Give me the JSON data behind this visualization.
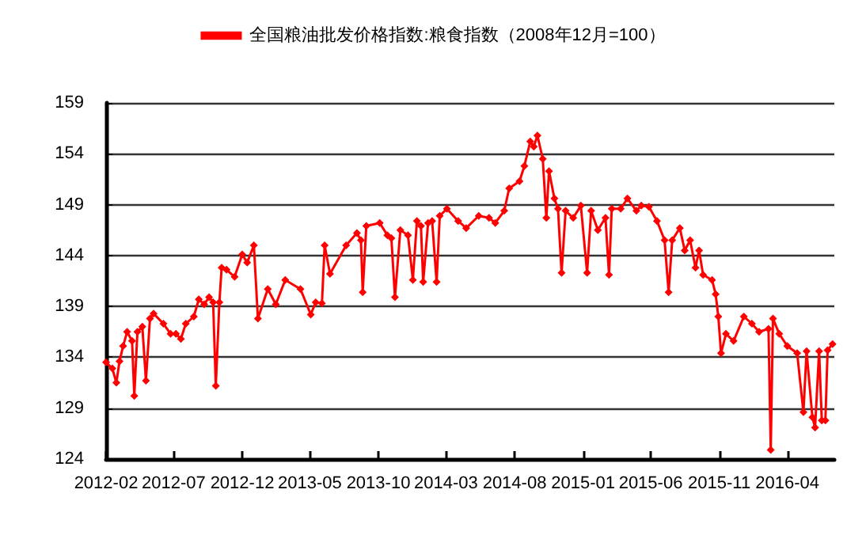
{
  "chart_data": {
    "type": "line",
    "legend": "top",
    "marker": "diamond",
    "line_style": "solid",
    "grid": "y",
    "xlim": [
      "2012-02-01",
      "2016-07-15"
    ],
    "xticks": [
      "2012-02",
      "2012-07",
      "2012-12",
      "2013-05",
      "2013-10",
      "2014-03",
      "2014-08",
      "2015-01",
      "2015-06",
      "2015-11",
      "2016-04"
    ],
    "ylim": [
      124,
      159
    ],
    "yticks": [
      124,
      129,
      134,
      139,
      144,
      149,
      154,
      159
    ],
    "series": [
      {
        "name": "全国粮油批发价格指数:粮食指数（2008年12月=100）",
        "color": "#ff0000",
        "x": [
          "2012-02-01",
          "2012-02-15",
          "2012-02-24",
          "2012-03-02",
          "2012-03-10",
          "2012-03-19",
          "2012-03-30",
          "2012-04-04",
          "2012-04-11",
          "2012-04-22",
          "2012-04-30",
          "2012-05-09",
          "2012-05-17",
          "2012-06-08",
          "2012-06-24",
          "2012-07-06",
          "2012-07-17",
          "2012-07-28",
          "2012-08-15",
          "2012-08-26",
          "2012-09-07",
          "2012-09-18",
          "2012-09-27",
          "2012-10-03",
          "2012-10-11",
          "2012-10-16",
          "2012-10-27",
          "2012-11-14",
          "2012-12-01",
          "2012-12-12",
          "2012-12-27",
          "2013-01-05",
          "2013-01-27",
          "2013-02-14",
          "2013-03-07",
          "2013-04-10",
          "2013-05-03",
          "2013-05-14",
          "2013-05-28",
          "2013-06-03",
          "2013-06-15",
          "2013-07-21",
          "2013-08-14",
          "2013-08-23",
          "2013-08-27",
          "2013-09-04",
          "2013-10-04",
          "2013-10-21",
          "2013-10-30",
          "2013-11-07",
          "2013-11-19",
          "2013-12-06",
          "2013-12-17",
          "2013-12-26",
          "2014-01-04",
          "2014-01-09",
          "2014-01-20",
          "2014-01-29",
          "2014-02-08",
          "2014-02-15",
          "2014-03-03",
          "2014-03-28",
          "2014-04-15",
          "2014-05-13",
          "2014-06-05",
          "2014-06-19",
          "2014-07-09",
          "2014-07-20",
          "2014-08-12",
          "2014-08-23",
          "2014-09-05",
          "2014-09-13",
          "2014-09-21",
          "2014-10-03",
          "2014-10-11",
          "2014-10-17",
          "2014-10-29",
          "2014-11-06",
          "2014-11-14",
          "2014-11-23",
          "2014-12-10",
          "2014-12-27",
          "2015-01-10",
          "2015-01-19",
          "2015-02-03",
          "2015-02-20",
          "2015-02-28",
          "2015-03-06",
          "2015-03-26",
          "2015-04-10",
          "2015-04-30",
          "2015-05-11",
          "2015-05-28",
          "2015-06-15",
          "2015-07-02",
          "2015-07-11",
          "2015-07-19",
          "2015-08-05",
          "2015-08-16",
          "2015-08-28",
          "2015-09-09",
          "2015-09-17",
          "2015-09-26",
          "2015-10-16",
          "2015-10-24",
          "2015-10-30",
          "2015-11-05",
          "2015-11-16",
          "2015-12-03",
          "2015-12-26",
          "2016-01-13",
          "2016-01-29",
          "2016-02-19",
          "2016-02-24",
          "2016-02-29",
          "2016-03-14",
          "2016-04-01",
          "2016-04-23",
          "2016-05-07",
          "2016-05-14",
          "2016-05-27",
          "2016-06-02",
          "2016-06-11",
          "2016-06-17",
          "2016-06-25",
          "2016-06-30",
          "2016-07-11"
        ],
        "values": [
          133.5,
          132.9,
          131.5,
          133.6,
          135.1,
          136.5,
          135.6,
          130.2,
          136.5,
          137,
          131.7,
          137.8,
          138.3,
          137.3,
          136.3,
          136.3,
          135.8,
          137.3,
          138,
          139.7,
          139.2,
          139.9,
          139.4,
          131.2,
          139.4,
          142.8,
          142.6,
          141.9,
          144.1,
          143.3,
          145,
          137.8,
          140.7,
          139.2,
          141.6,
          140.7,
          138.2,
          139.4,
          139.3,
          145,
          142.2,
          145,
          146.2,
          145.5,
          140.4,
          146.9,
          147.2,
          146,
          145.7,
          139.9,
          146.5,
          146,
          141.6,
          147.4,
          146.9,
          141.4,
          147.2,
          147.4,
          141.4,
          147.9,
          148.6,
          147.4,
          146.7,
          147.9,
          147.7,
          147.2,
          148.4,
          150.6,
          151.3,
          152.8,
          155.2,
          154.7,
          155.8,
          153.5,
          147.7,
          152.3,
          149.6,
          148.6,
          142.3,
          148.4,
          147.7,
          148.9,
          142.3,
          148.4,
          146.5,
          147.7,
          142.1,
          148.6,
          148.6,
          149.6,
          148.4,
          148.9,
          148.8,
          147.4,
          145.5,
          140.4,
          145.5,
          146.7,
          144.5,
          145.5,
          142.8,
          144.5,
          142.1,
          141.6,
          140.2,
          138,
          134.4,
          136.3,
          135.6,
          138,
          137.3,
          136.5,
          136.8,
          124.9,
          137.8,
          136.3,
          135.1,
          134.4,
          128.6,
          134.6,
          128.1,
          127.1,
          134.6,
          127.8,
          127.8,
          134.7,
          135.3
        ]
      }
    ]
  }
}
